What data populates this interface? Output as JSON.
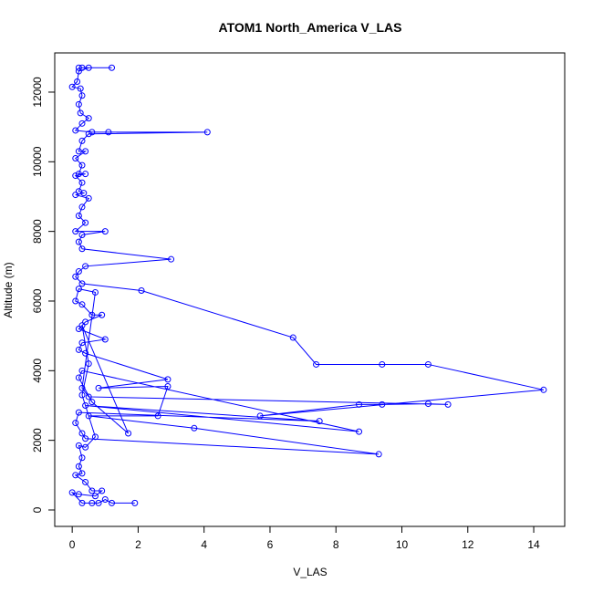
{
  "chart_data": {
    "type": "line",
    "title": "ATOM1 North_America V_LAS",
    "x_label": "V_LAS",
    "y_label": "Altitude (m)",
    "color": "#0000ff",
    "markers": true,
    "xlim": [
      -0.53,
      14.94
    ],
    "ylim": [
      -472,
      13126
    ],
    "xticks": [
      0,
      2,
      4,
      6,
      8,
      10,
      12,
      14
    ],
    "yticks": [
      0,
      2000,
      4000,
      6000,
      8000,
      10000,
      12000
    ],
    "x": [
      0.2,
      0.3,
      1.2,
      0.5,
      0.2,
      0.15,
      0.0,
      0.25,
      0.3,
      0.2,
      0.25,
      0.5,
      0.3,
      0.1,
      0.6,
      1.1,
      4.1,
      0.5,
      0.3,
      0.2,
      0.4,
      0.1,
      0.3,
      0.2,
      0.4,
      0.1,
      0.3,
      0.2,
      0.35,
      0.1,
      0.5,
      0.3,
      0.2,
      0.4,
      0.1,
      1.0,
      0.3,
      0.2,
      0.3,
      3.0,
      0.4,
      0.2,
      0.1,
      0.3,
      2.1,
      6.7,
      7.4,
      9.4,
      10.8,
      14.3,
      5.7,
      8.7,
      9.4,
      10.8,
      11.4,
      0.5,
      0.3,
      0.7,
      0.2,
      0.1,
      0.3,
      0.6,
      0.9,
      0.4,
      0.2,
      1.0,
      0.3,
      0.2,
      0.4,
      2.9,
      0.8,
      2.9,
      2.6,
      0.5,
      3.7,
      9.3,
      0.4,
      0.3,
      0.1,
      0.2,
      7.5,
      0.4,
      8.7,
      0.3,
      0.2,
      0.6,
      1.7,
      0.3,
      0.5,
      0.3,
      0.7,
      0.4,
      0.2,
      0.3,
      0.2,
      0.3,
      0.1,
      0.4,
      0.6,
      0.9,
      0.7,
      0.2,
      0.0,
      0.3,
      0.6,
      0.8,
      1.0,
      1.2,
      1.9
    ],
    "values": [
      12700,
      12700,
      12700,
      12700,
      12600,
      12300,
      12150,
      12100,
      11900,
      11650,
      11400,
      11250,
      11100,
      10900,
      10850,
      10850,
      10850,
      10800,
      10600,
      10300,
      10300,
      10100,
      9900,
      9650,
      9650,
      9600,
      9400,
      9150,
      9100,
      9050,
      8950,
      8700,
      8450,
      8250,
      8000,
      8000,
      7900,
      7700,
      7500,
      7200,
      7000,
      6850,
      6700,
      6500,
      6300,
      4950,
      4180,
      4180,
      4180,
      3450,
      2700,
      3030,
      3030,
      3050,
      3030,
      3250,
      3500,
      6250,
      6350,
      6000,
      5900,
      5600,
      5600,
      5400,
      5200,
      4900,
      4800,
      4600,
      4500,
      3750,
      3500,
      3550,
      2700,
      2700,
      2350,
      1600,
      2050,
      2200,
      2500,
      2800,
      2550,
      3000,
      2250,
      4000,
      3800,
      3100,
      2200,
      5300,
      4200,
      3300,
      2100,
      1800,
      1850,
      1500,
      1250,
      1050,
      1000,
      800,
      550,
      550,
      400,
      450,
      500,
      200,
      200,
      200,
      300,
      200,
      200
    ]
  }
}
